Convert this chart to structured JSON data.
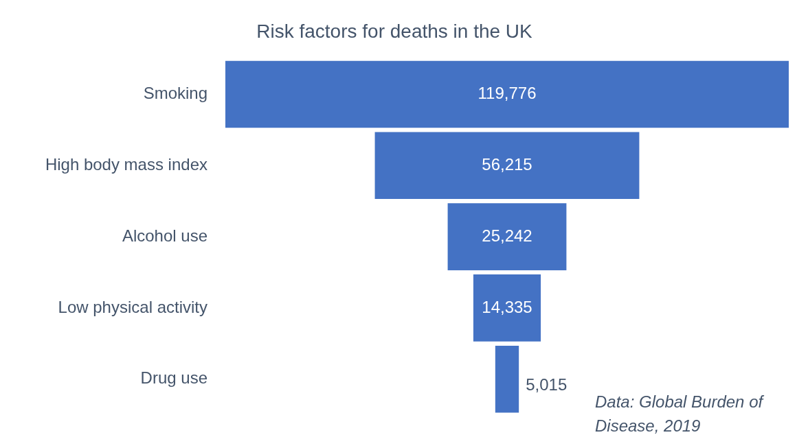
{
  "chart_data": {
    "type": "other",
    "title": "Risk factors for deaths in the UK",
    "categories": [
      "Smoking",
      "High body mass index",
      "Alcohol use",
      "Low physical activity",
      "Drug use"
    ],
    "values": [
      119776,
      56215,
      25242,
      14335,
      5015
    ],
    "color": "#4472c4",
    "value_labels": [
      "119,776",
      "56,215",
      "25,242",
      "14,335",
      "5,015"
    ],
    "annotations": [
      "Data: Global Burden of Disease, 2019"
    ]
  }
}
